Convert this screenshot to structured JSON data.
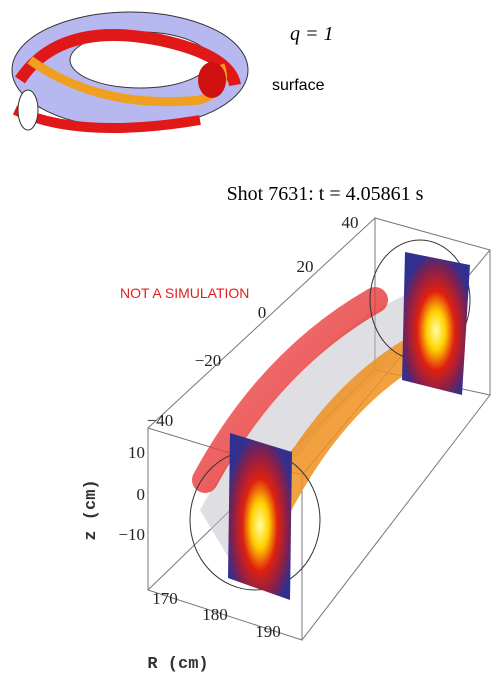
{
  "inset": {
    "label": "q = 1",
    "caption": "surface"
  },
  "figure": {
    "title": "Shot 7631: t = 4.05861 s",
    "annotation": "NOT A SIMULATION",
    "depth_ticks": [
      "40",
      "20",
      "0",
      "−20",
      "−40"
    ],
    "z_ticks": [
      "10",
      "0",
      "−10"
    ],
    "r_ticks": [
      "170",
      "180",
      "190"
    ],
    "z_label": "z (cm)",
    "r_label": "R (cm)"
  }
}
